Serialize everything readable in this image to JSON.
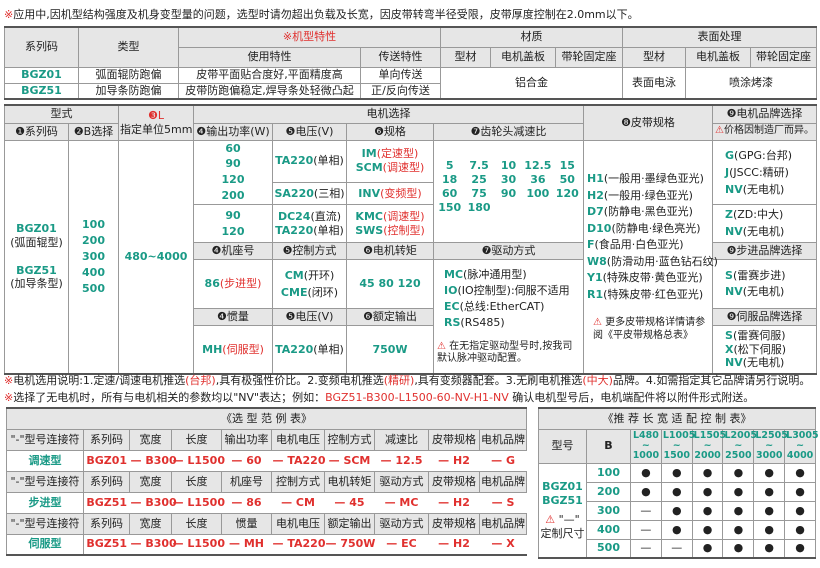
{
  "note_top": {
    "mark": "※",
    "text": "应用中,因机型结构强度及机身变型量的问题，选型时请勿超出负载及长宽，因皮带转弯半径受限，皮带厚度控制在2.0mm以下。"
  },
  "spec_table": {
    "h_series": "系列码",
    "h_type": "类型",
    "h_features": "※机型特性",
    "h_usage": "使用特性",
    "h_transfer": "传送特性",
    "h_material": "材质",
    "h_surface": "表面处理",
    "h_profile": "型材",
    "h_cover": "电机盖板",
    "h_pulley": "带轮固定座",
    "rows": [
      {
        "code": "BGZ01",
        "type": "弧面辊防跑偏",
        "usage": "皮带平面贴合度好,平面精度高",
        "transfer": "单向传送"
      },
      {
        "code": "BGZ51",
        "type": "加导条防跑偏",
        "usage": "皮带防跑偏稳定,焊导条处轻微凸起",
        "transfer": "正/反向传送"
      }
    ],
    "material_value": "铝合金",
    "surface_profile": "表面电泳",
    "surface_other": "喷涂烤漆"
  },
  "select_table": {
    "h_form": "型式",
    "h_series": "❶系列码",
    "h_b": "❷B选择",
    "h_l": "❸L",
    "h_l_unit": "指定单位5mm",
    "h_motor": "电机选择",
    "h_power": "❹输出功率(W)",
    "h_voltage": "❺电压(V)",
    "h_spec": "❻规格",
    "h_ratio": "❼齿轮头减速比",
    "h_belt": "❽皮带规格",
    "h_brand": "❾电机品牌选择",
    "brand_note": "价格因制造厂而异。",
    "series": [
      {
        "code": "BGZ01",
        "desc": "(弧面辊型)"
      },
      {
        "code": "BGZ51",
        "desc": "(加导条型)"
      }
    ],
    "b_values": [
      "100",
      "200",
      "300",
      "400",
      "500"
    ],
    "l_range": "480~4000",
    "power_ac": [
      "60",
      "90",
      "120",
      "200"
    ],
    "power_dc": [
      "90",
      "120"
    ],
    "volt_ta": {
      "code": "TA220",
      "desc": "(单相)"
    },
    "volt_sa": {
      "code": "SA220",
      "desc": "(三相)"
    },
    "volt_dc": {
      "code": "DC24",
      "desc": "(直流)"
    },
    "volt_ta2": {
      "code": "TA220",
      "desc": "(单相)"
    },
    "spec_im": {
      "code": "IM",
      "desc": "(定速型)"
    },
    "spec_scm": {
      "code": "SCM",
      "desc": "(调速型)"
    },
    "spec_inv": {
      "code": "INV",
      "desc": "(变频型)"
    },
    "spec_kmc": {
      "code": "KMC",
      "desc": "(调速型)"
    },
    "spec_sws": {
      "code": "SWS",
      "desc": "(控制型)"
    },
    "ratios": [
      [
        "5",
        "7.5",
        "10",
        "12.5",
        "15"
      ],
      [
        "18",
        "25",
        "30",
        "36",
        "50"
      ],
      [
        "60",
        "75",
        "90",
        "100",
        "120"
      ],
      [
        "150",
        "180"
      ]
    ],
    "belts": [
      {
        "code": "H1",
        "desc": "(一般用·墨绿色亚光)"
      },
      {
        "code": "H2",
        "desc": "(一般用·绿色亚光)"
      },
      {
        "code": "D7",
        "desc": "(防静电·黑色亚光)"
      },
      {
        "code": "D10",
        "desc": "(防静电·绿色亮光)"
      },
      {
        "code": "F",
        "desc": "(食品用·白色亚光)"
      },
      {
        "code": "W8",
        "desc": "(防滑动用·蓝色钻石纹)"
      },
      {
        "code": "Y1",
        "desc": "(特殊皮带·黄色亚光)"
      },
      {
        "code": "R1",
        "desc": "(特殊皮带·红色亚光)"
      }
    ],
    "belt_note": "更多皮带规格详情请参阅《平皮带规格总表》",
    "brand_ac": [
      {
        "code": "G",
        "desc": "(GPG:台邦)"
      },
      {
        "code": "J",
        "desc": "(JSCC:精研)"
      },
      {
        "code": "NV",
        "desc": "(无电机)"
      }
    ],
    "brand_dc": [
      {
        "code": "Z",
        "desc": "(ZD:中大)"
      },
      {
        "code": "NV",
        "desc": "(无电机)"
      }
    ],
    "h_frame": "❹机座号",
    "h_control": "❺控制方式",
    "h_torque": "❻电机转矩",
    "h_drive": "❼驱动方式",
    "h_stepper_brand": "❾步进品牌选择",
    "frame": {
      "code": "86",
      "desc": "(步进型)"
    },
    "control": [
      {
        "code": "CM",
        "desc": "(开环)"
      },
      {
        "code": "CME",
        "desc": "(闭环)"
      }
    ],
    "torque": "45   80   120",
    "drives": [
      {
        "code": "MC",
        "desc": "(脉冲通用型)"
      },
      {
        "code": "IO",
        "desc": "(IO控制型):伺服不适用"
      },
      {
        "code": "EC",
        "desc": "(总线:EtherCAT)"
      },
      {
        "code": "RS",
        "desc": "(RS485)"
      }
    ],
    "drive_note": "在无指定驱动型号时,按我司默认脉冲驱动配置。",
    "brand_stepper": [
      {
        "code": "S",
        "desc": "(雷赛步进)"
      },
      {
        "code": "NV",
        "desc": "(无电机)"
      }
    ],
    "h_inertia": "❹惯量",
    "h_voltage2": "❺电压(V)",
    "h_rated": "❻额定输出",
    "h_servo_brand": "❾伺服品牌选择",
    "inertia": {
      "code": "MH",
      "desc": "(伺服型)"
    },
    "volt_servo": {
      "code": "TA220",
      "desc": "(单相)"
    },
    "rated": "750W",
    "brand_servo": [
      {
        "code": "S",
        "desc": "(雷赛伺服)"
      },
      {
        "code": "X",
        "desc": "(松下伺服)"
      },
      {
        "code": "NV",
        "desc": "(无电机)"
      }
    ]
  },
  "notes": [
    [
      {
        "t": "※",
        "red": true
      },
      {
        "t": "电机选用说明:1.定速/调速电机推选"
      },
      {
        "t": "(台邦)",
        "red": true
      },
      {
        "t": ",具有极强性价比。2.变频电机推选"
      },
      {
        "t": "(精研)",
        "red": true
      },
      {
        "t": ",具有变频器配套。3.无刷电机推选"
      },
      {
        "t": "(中大)",
        "red": true
      },
      {
        "t": "品牌。4.如需指定其它品牌请另行说明。"
      }
    ],
    [
      {
        "t": "※",
        "red": true
      },
      {
        "t": "选择了无电机时，所有与电机相关的参数均以\"NV\"表达；例如："
      },
      {
        "t": "BGZ51-B300-L1500-60-NV-H1-NV",
        "red": true
      },
      {
        "t": "  确认电机型号后，电机端配件将以附件形式附送。"
      }
    ]
  ],
  "example_table": {
    "title": "《选 型 范 例 表》",
    "connector": "—",
    "groups": [
      {
        "headers": [
          "\"-\"型号连接符",
          "系列码",
          "宽度",
          "长度",
          "输出功率",
          "电机电压",
          "控制方式",
          "减速比",
          "皮带规格",
          "电机品牌"
        ],
        "label": "调速型",
        "values": [
          "BGZ01",
          "B300",
          "L1500",
          "60",
          "TA220",
          "SCM",
          "12.5",
          "H2",
          "G"
        ]
      },
      {
        "headers": [
          "\"-\"型号连接符",
          "系列码",
          "宽度",
          "长度",
          "机座号",
          "控制方式",
          "电机转矩",
          "驱动方式",
          "皮带规格",
          "电机品牌"
        ],
        "label": "步进型",
        "values": [
          "BGZ51",
          "B300",
          "L1500",
          "86",
          "CM",
          "45",
          "MC",
          "H2",
          "S"
        ]
      },
      {
        "headers": [
          "\"-\"型号连接符",
          "系列码",
          "宽度",
          "长度",
          "惯量",
          "电机电压",
          "额定输出",
          "驱动方式",
          "皮带规格",
          "电机品牌"
        ],
        "label": "伺服型",
        "values": [
          "BGZ51",
          "B300",
          "L1500",
          "MH",
          "TA220",
          "750W",
          "EC",
          "H2",
          "X"
        ]
      }
    ]
  },
  "recommend_table": {
    "title": "《推 荐 长 宽 适 配 控 制 表》",
    "h_model": "型号",
    "h_b": "B",
    "ranges": [
      [
        "L480",
        "1000"
      ],
      [
        "L1005",
        "1500"
      ],
      [
        "L1505",
        "2000"
      ],
      [
        "L2005",
        "2500"
      ],
      [
        "L2505",
        "3000"
      ],
      [
        "L3005",
        "4000"
      ]
    ],
    "range_sep": "~",
    "models": [
      "BGZ01",
      "BGZ51"
    ],
    "custom_mark": "\"—\"",
    "custom_label": "定制尺寸",
    "rows": [
      {
        "b": "100",
        "marks": [
          "●",
          "●",
          "●",
          "●",
          "●",
          "●"
        ]
      },
      {
        "b": "200",
        "marks": [
          "●",
          "●",
          "●",
          "●",
          "●",
          "●"
        ]
      },
      {
        "b": "300",
        "marks": [
          "—",
          "●",
          "●",
          "●",
          "●",
          "●"
        ]
      },
      {
        "b": "400",
        "marks": [
          "—",
          "●",
          "●",
          "●",
          "●",
          "●"
        ]
      },
      {
        "b": "500",
        "marks": [
          "—",
          "—",
          "●",
          "●",
          "●",
          "●"
        ]
      }
    ]
  },
  "colors": {
    "accent_green": "#1a9a86",
    "accent_red": "#e0302e",
    "header_bg": "#e6e6e6"
  }
}
